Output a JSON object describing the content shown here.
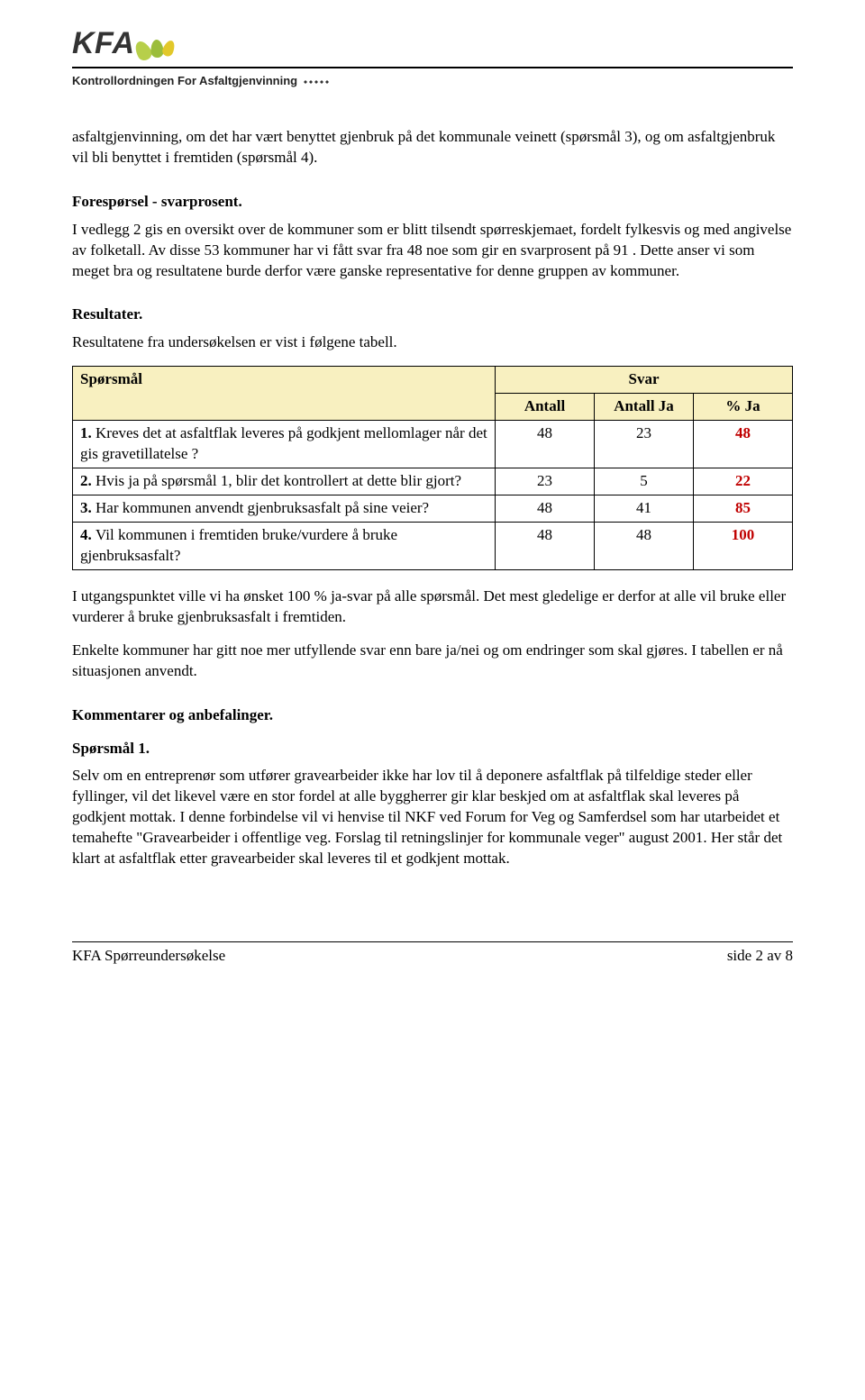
{
  "logo": {
    "main": "KFA",
    "sub": "Kontrollordningen For Asfaltgjenvinning"
  },
  "intro_para": "asfaltgjenvinning, om det har vært benyttet gjenbruk på det kommunale veinett (spørsmål 3), og om asfaltgjenbruk vil bli benyttet i fremtiden (spørsmål 4).",
  "sections": {
    "forsporsel": {
      "title": "Forespørsel - svarprosent.",
      "para": "I vedlegg 2 gis en oversikt over de kommuner som er blitt tilsendt spørreskjemaet, fordelt fylkesvis og med angivelse av folketall. Av disse 53 kommuner har vi fått svar fra 48 noe som gir en svarprosent på 91 . Dette anser vi som meget bra og resultatene burde derfor være ganske representative for denne gruppen av kommuner."
    },
    "resultater": {
      "title": "Resultater.",
      "intro": "Resultatene fra undersøkelsen er vist i følgene tabell."
    },
    "kommentarer": {
      "title": "Kommentarer og anbefalinger.",
      "sub1_title": "Spørsmål 1.",
      "sub1_para": "Selv om en entreprenør som utfører gravearbeider ikke har lov til å deponere asfaltflak på tilfeldige steder eller fyllinger, vil det likevel være en stor fordel at alle byggherrer gir klar beskjed om at asfaltflak skal leveres på godkjent mottak. I denne forbindelse vil vi henvise til NKF ved Forum for Veg og Samferdsel som har utarbeidet et temahefte \"Gravearbeider i offentlige veg. Forslag til retningslinjer for kommunale veger\" august 2001. Her står det klart at asfaltflak etter gravearbeider skal leveres til et godkjent mottak."
    }
  },
  "table": {
    "type": "table",
    "header": {
      "question": "Spørsmål",
      "svar": "Svar",
      "antall": "Antall",
      "antall_ja": "Antall Ja",
      "pct_ja": "% Ja"
    },
    "header_bg": "#f8f0c0",
    "pct_color": "#c00000",
    "border_color": "#000000",
    "rows": [
      {
        "num": "1.",
        "q": "Kreves det at asfaltflak leveres på godkjent mellomlager når det gis gravetillatelse ?",
        "antall": "48",
        "antall_ja": "23",
        "pct": "48"
      },
      {
        "num": "2.",
        "q": "Hvis ja på spørsmål 1, blir det kontrollert at dette blir gjort?",
        "antall": "23",
        "antall_ja": "5",
        "pct": "22"
      },
      {
        "num": "3.",
        "q": "Har kommunen anvendt gjenbruksasfalt på sine veier?",
        "antall": "48",
        "antall_ja": "41",
        "pct": "85"
      },
      {
        "num": "4.",
        "q": "Vil kommunen i fremtiden bruke/vurdere å bruke gjenbruksasfalt?",
        "antall": "48",
        "antall_ja": "48",
        "pct": "100"
      }
    ]
  },
  "after_table": {
    "p1": "I utgangspunktet ville vi ha ønsket 100 % ja-svar på alle spørsmål. Det mest gledelige er derfor at alle vil bruke eller vurderer å bruke gjenbruksasfalt i fremtiden.",
    "p2": "Enkelte kommuner har gitt noe mer utfyllende svar enn bare ja/nei og om endringer som skal gjøres. I tabellen er nå situasjonen anvendt."
  },
  "footer": {
    "left": "KFA  Spørreundersøkelse",
    "right": "side 2 av 8"
  }
}
